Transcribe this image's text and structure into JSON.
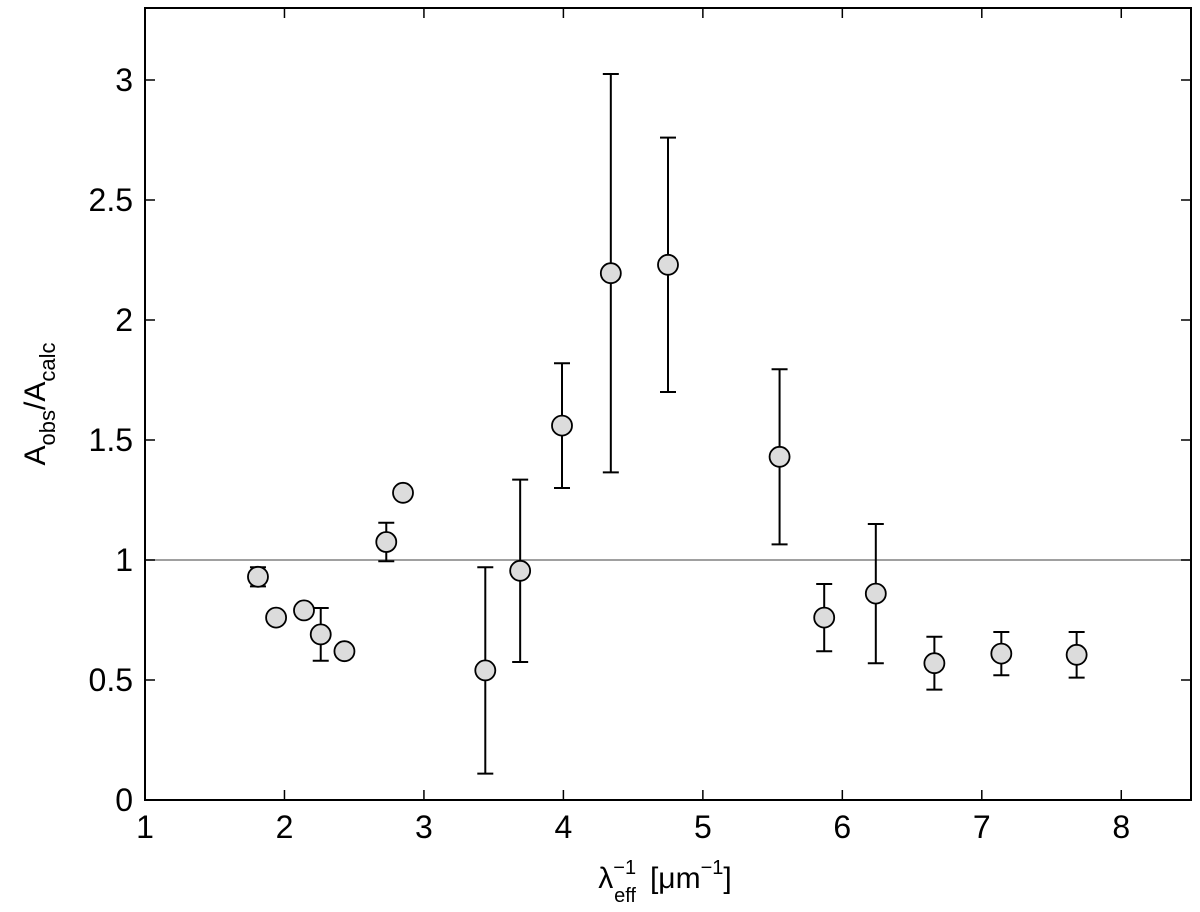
{
  "chart_data": {
    "type": "scatter",
    "xlabel": [
      "λ",
      "−1",
      "eff",
      "[μm",
      "−1",
      "]"
    ],
    "ylabel": [
      "A",
      "obs",
      "/A",
      "calc"
    ],
    "xlim": [
      1,
      8.5
    ],
    "ylim": [
      0,
      3.3
    ],
    "xticks": [
      1,
      2,
      3,
      4,
      5,
      6,
      7,
      8
    ],
    "yticks": [
      0,
      0.5,
      1,
      1.5,
      2,
      2.5,
      3
    ],
    "reference_line": 1,
    "color": "#dcdcdc",
    "x": [
      1.81,
      1.94,
      2.14,
      2.26,
      2.43,
      2.73,
      2.85,
      3.44,
      3.69,
      3.99,
      4.34,
      4.75,
      5.55,
      5.87,
      6.24,
      6.66,
      7.14,
      7.68
    ],
    "values": [
      0.93,
      0.76,
      0.79,
      0.69,
      0.62,
      1.075,
      1.28,
      0.54,
      0.955,
      1.56,
      2.195,
      2.23,
      1.43,
      0.76,
      0.86,
      0.57,
      0.61,
      0.605
    ],
    "errors": [
      0.04,
      null,
      null,
      0.11,
      null,
      0.08,
      null,
      0.43,
      0.38,
      0.26,
      0.83,
      0.53,
      0.365,
      0.14,
      0.29,
      0.11,
      0.09,
      0.095
    ]
  }
}
